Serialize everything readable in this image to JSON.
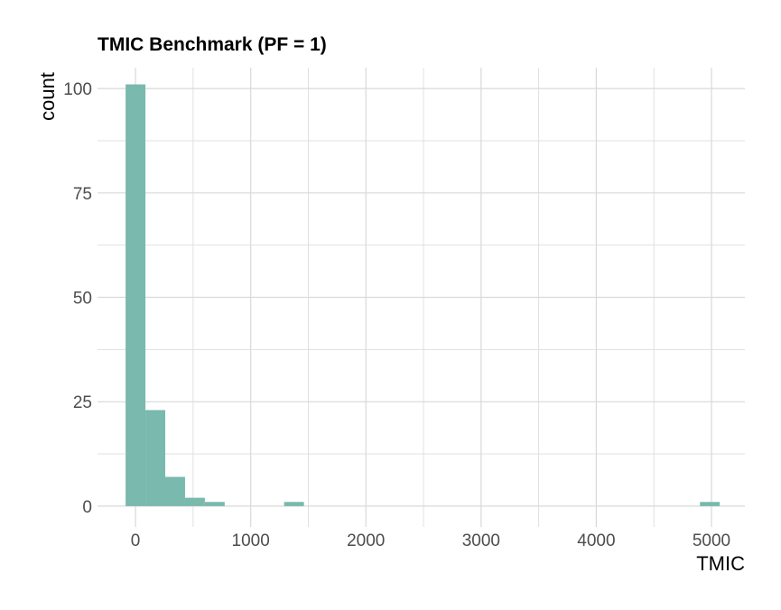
{
  "chart_data": {
    "type": "bar",
    "title": "TMIC Benchmark (PF = 1)",
    "xlabel": "TMIC",
    "ylabel": "count",
    "bin_width": 172,
    "bins": [
      {
        "start": -86,
        "end": 86,
        "count": 101
      },
      {
        "start": 86,
        "end": 258,
        "count": 23
      },
      {
        "start": 258,
        "end": 430,
        "count": 7
      },
      {
        "start": 430,
        "end": 602,
        "count": 2
      },
      {
        "start": 602,
        "end": 774,
        "count": 1
      },
      {
        "start": 1290,
        "end": 1462,
        "count": 1
      },
      {
        "start": 4900,
        "end": 5072,
        "count": 1
      }
    ],
    "xlim": [
      -330,
      5290
    ],
    "ylim": [
      -5,
      105
    ],
    "x_ticks": [
      0,
      1000,
      2000,
      3000,
      4000,
      5000
    ],
    "x_tick_labels": [
      "0",
      "1000",
      "2000",
      "3000",
      "4000",
      "5000"
    ],
    "y_ticks": [
      0,
      25,
      50,
      75,
      100
    ],
    "y_tick_labels": [
      "0",
      "25",
      "50",
      "75",
      "100"
    ],
    "x_minor_ticks": [
      500,
      1500,
      2500,
      3500,
      4500
    ],
    "y_minor_ticks": [
      12.5,
      37.5,
      62.5,
      87.5
    ],
    "grid": true,
    "bar_color": "#7ab9ad",
    "grid_color": "#d9d9d9"
  }
}
